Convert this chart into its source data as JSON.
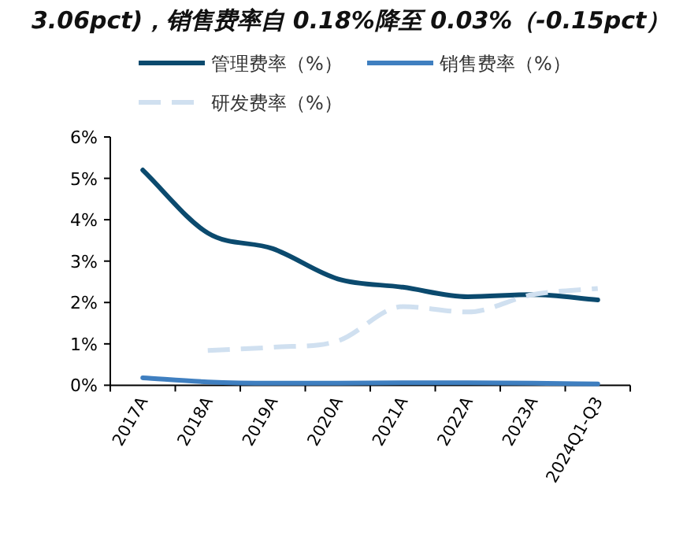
{
  "chart_data": {
    "type": "line",
    "title": "3.06pct)，销售费率自 0.18%降至 0.03%（-0.15pct）",
    "categories": [
      "2017A",
      "2018A",
      "2019A",
      "2020A",
      "2021A",
      "2022A",
      "2023A",
      "2024Q1-Q3"
    ],
    "series": [
      {
        "name": "管理费率（%）",
        "color": "#0b4a6e",
        "line_style": "solid",
        "values": [
          5.2,
          3.68,
          3.3,
          2.57,
          2.37,
          2.14,
          2.19,
          2.06
        ]
      },
      {
        "name": "销售费率（%）",
        "color": "#3f7fc0",
        "line_style": "solid",
        "values": [
          0.18,
          0.08,
          0.05,
          0.05,
          0.06,
          0.06,
          0.05,
          0.03
        ]
      },
      {
        "name": "研发费率（%）",
        "color": "#d0e0f0",
        "line_style": "dashed",
        "values": [
          null,
          0.84,
          0.92,
          1.07,
          1.9,
          1.77,
          2.19,
          2.34
        ]
      }
    ],
    "ylim": [
      0,
      6
    ],
    "yticks": [
      {
        "value": 0,
        "label": "0%"
      },
      {
        "value": 1,
        "label": "1%"
      },
      {
        "value": 2,
        "label": "2%"
      },
      {
        "value": 3,
        "label": "3%"
      },
      {
        "value": 4,
        "label": "4%"
      },
      {
        "value": 5,
        "label": "5%"
      },
      {
        "value": 6,
        "label": "6%"
      }
    ],
    "legend": "top"
  }
}
